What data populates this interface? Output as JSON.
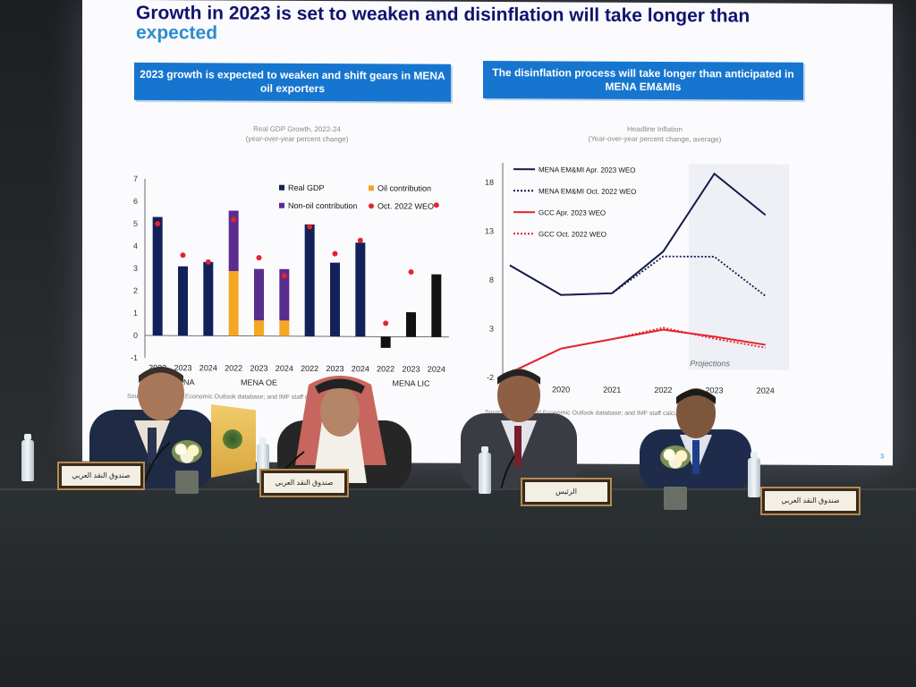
{
  "slide": {
    "title_line1": "Growth in 2023 is set to weaken and disinflation will take longer than",
    "title_line2": "expected",
    "page_number": "3"
  },
  "left_panel": {
    "banner": "2023 growth is expected to weaken and shift gears in MENA oil exporters",
    "chart_title": "Real GDP Growth, 2022-24",
    "chart_subtitle": "(year-over-year percent change)",
    "source": "Sources: IMF, World Economic Outlook database; and IMF staff calculations."
  },
  "right_panel": {
    "banner": "The disinflation process will take longer than anticipated in MENA EM&MIs",
    "chart_title": "Headline Inflation",
    "chart_subtitle": "(Year-over-year percent change, average)",
    "projections_label": "Projections",
    "source": "Sources: IMF, World Economic Outlook database; and IMF staff calculations."
  },
  "chart_data": [
    {
      "type": "bar",
      "title": "Real GDP Growth, 2022-24",
      "subtitle": "(year-over-year percent change)",
      "categories": [
        "2022",
        "2023",
        "2024",
        "2022",
        "2023",
        "2024",
        "2022",
        "2023",
        "2024",
        "2022",
        "2023",
        "2024"
      ],
      "groups": [
        "MENA",
        "MENA OE",
        "MENA",
        "MENA LIC"
      ],
      "ylim": [
        -1,
        7
      ],
      "yticks": [
        -1,
        0,
        1,
        2,
        3,
        4,
        5,
        6,
        7
      ],
      "legend": [
        "Real GDP",
        "Oil contribution",
        "Non-oil contribution",
        "Oct. 2022 WEO"
      ],
      "colors": {
        "real_gdp": "#12215a",
        "oil": "#f5a623",
        "non_oil": "#5b2c8f",
        "weo": "#e4232e",
        "lic": "#111111"
      },
      "series": [
        {
          "name": "Real GDP",
          "values": [
            5.3,
            3.1,
            3.3,
            null,
            null,
            null,
            5.0,
            3.3,
            4.2,
            -0.5,
            1.1,
            2.8
          ]
        },
        {
          "name": "Oil contribution",
          "values": [
            null,
            null,
            null,
            2.9,
            0.7,
            0.7,
            null,
            null,
            null,
            null,
            null,
            null
          ]
        },
        {
          "name": "Non-oil contribution",
          "values": [
            null,
            null,
            null,
            2.7,
            2.3,
            2.3,
            null,
            null,
            null,
            null,
            null,
            null
          ]
        },
        {
          "name": "Oct. 2022 WEO",
          "values": [
            5.0,
            3.6,
            3.3,
            5.2,
            3.5,
            2.7,
            4.9,
            3.7,
            4.3,
            0.6,
            2.9,
            5.9
          ]
        }
      ]
    },
    {
      "type": "line",
      "title": "Headline Inflation",
      "subtitle": "(Year-over-year percent change, average)",
      "x": [
        "2019",
        "2020",
        "2021",
        "2022",
        "2023",
        "2024"
      ],
      "x_tick_labels": [
        "2020",
        "2021",
        "2022",
        "2023",
        "2024"
      ],
      "ylim": [
        -2,
        20
      ],
      "yticks": [
        -2,
        3,
        8,
        13,
        18
      ],
      "legend_position": "top-left",
      "series": [
        {
          "name": "MENA EM&MI Apr. 2023 WEO",
          "style": "solid",
          "color": "#141b4d",
          "values": [
            9.5,
            6.5,
            6.7,
            11.0,
            19.0,
            14.8
          ]
        },
        {
          "name": "MENA EM&MI Oct. 2022 WEO",
          "style": "dotted",
          "color": "#141b4d",
          "values": [
            9.5,
            6.5,
            6.7,
            10.5,
            10.5,
            6.5
          ]
        },
        {
          "name": "GCC Apr. 2023 WEO",
          "style": "solid",
          "color": "#e4232e",
          "values": [
            -1.5,
            1.0,
            2.0,
            3.0,
            2.3,
            1.5
          ]
        },
        {
          "name": "GCC Oct. 2022 WEO",
          "style": "dotted",
          "color": "#e4232e",
          "values": [
            -1.5,
            1.0,
            2.0,
            3.2,
            2.1,
            1.2
          ]
        }
      ]
    }
  ],
  "placards": [
    "صندوق النقد العربي",
    "صندوق النقد العربي",
    "الرئيس",
    "صندوق النقد العربي"
  ]
}
